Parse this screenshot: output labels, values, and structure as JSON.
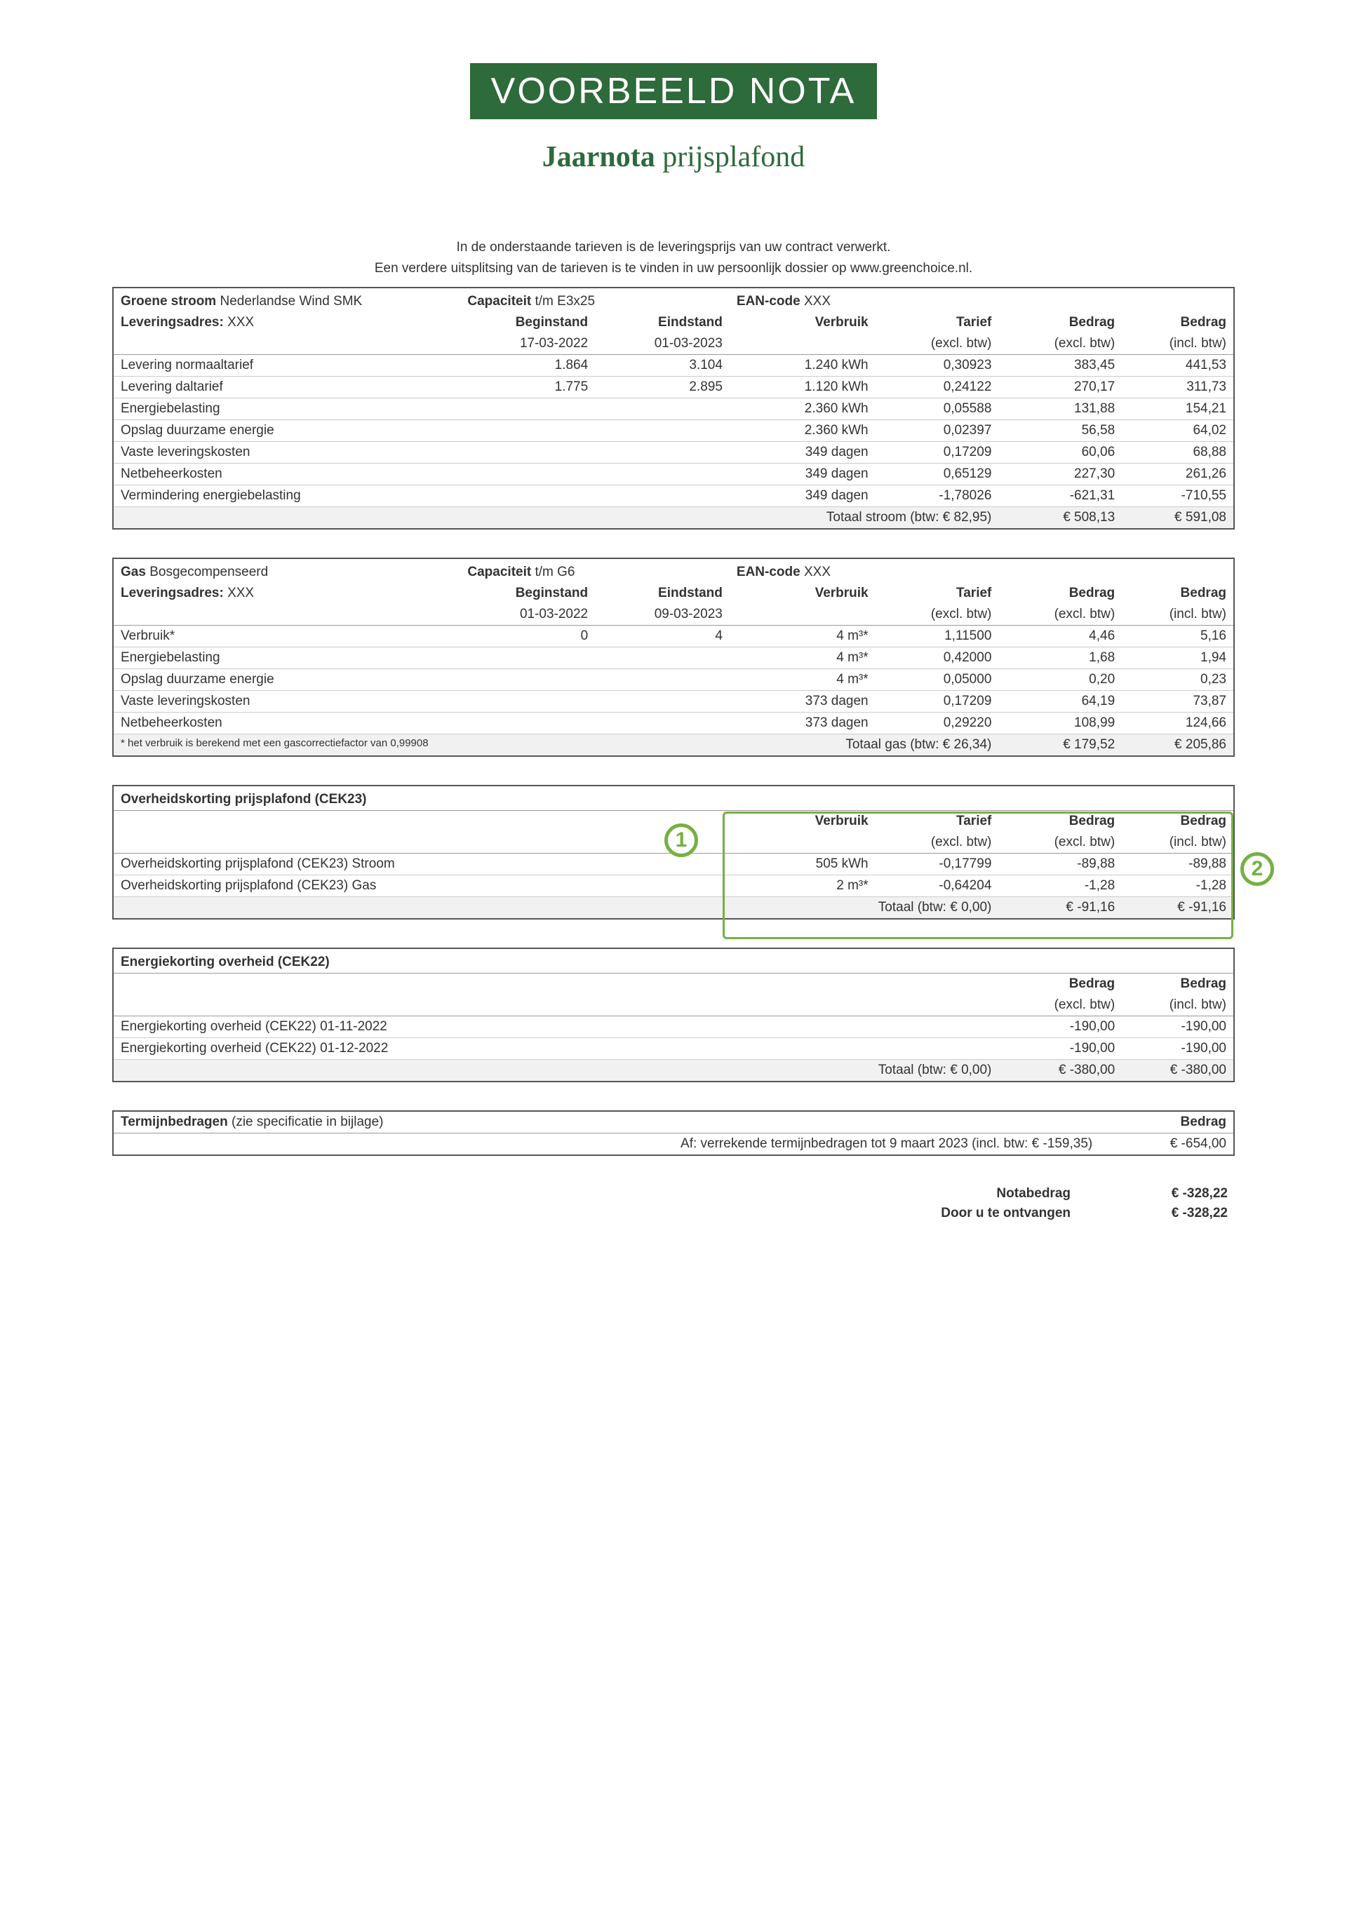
{
  "banner": "VOORBEELD NOTA",
  "subtitle_bold": "Jaarnota",
  "subtitle_light": " prijsplafond",
  "intro_line1": "In de onderstaande tarieven is de leveringsprijs van uw contract verwerkt.",
  "intro_line2": "Een verdere uitsplitsing van de tarieven is te vinden in uw persoonlijk dossier op www.greenchoice.nl.",
  "stroom": {
    "product_label": "Groene stroom",
    "product_value": "Nederlandse Wind SMK",
    "capaciteit_label": "Capaciteit",
    "capaciteit_value": "t/m E3x25",
    "ean_label": "EAN-code",
    "ean_value": "XXX",
    "adres_label": "Leveringsadres:",
    "adres_value": "XXX",
    "col_beginstand": "Beginstand",
    "col_beginstand_date": "17-03-2022",
    "col_eindstand": "Eindstand",
    "col_eindstand_date": "01-03-2023",
    "col_verbruik": "Verbruik",
    "col_tarief": "Tarief",
    "col_tarief_sub": "(excl. btw)",
    "col_bedrag_excl": "Bedrag",
    "col_bedrag_excl_sub": "(excl. btw)",
    "col_bedrag_incl": "Bedrag",
    "col_bedrag_incl_sub": "(incl. btw)",
    "rows": [
      {
        "label": "Levering normaaltarief",
        "begin": "1.864",
        "eind": "3.104",
        "verbruik": "1.240 kWh",
        "tarief": "0,30923",
        "excl": "383,45",
        "incl": "441,53"
      },
      {
        "label": "Levering daltarief",
        "begin": "1.775",
        "eind": "2.895",
        "verbruik": "1.120 kWh",
        "tarief": "0,24122",
        "excl": "270,17",
        "incl": "311,73"
      },
      {
        "label": "Energiebelasting",
        "begin": "",
        "eind": "",
        "verbruik": "2.360 kWh",
        "tarief": "0,05588",
        "excl": "131,88",
        "incl": "154,21"
      },
      {
        "label": "Opslag duurzame energie",
        "begin": "",
        "eind": "",
        "verbruik": "2.360 kWh",
        "tarief": "0,02397",
        "excl": "56,58",
        "incl": "64,02"
      },
      {
        "label": "Vaste leveringskosten",
        "begin": "",
        "eind": "",
        "verbruik": "349 dagen",
        "tarief": "0,17209",
        "excl": "60,06",
        "incl": "68,88"
      },
      {
        "label": "Netbeheerkosten",
        "begin": "",
        "eind": "",
        "verbruik": "349 dagen",
        "tarief": "0,65129",
        "excl": "227,30",
        "incl": "261,26"
      },
      {
        "label": "Vermindering energiebelasting",
        "begin": "",
        "eind": "",
        "verbruik": "349 dagen",
        "tarief": "-1,78026",
        "excl": "-621,31",
        "incl": "-710,55"
      }
    ],
    "total_label": "Totaal stroom (btw: € 82,95)",
    "total_excl": "€ 508,13",
    "total_incl": "€ 591,08"
  },
  "gas": {
    "product_label": "Gas",
    "product_value": "Bosgecompenseerd",
    "capaciteit_label": "Capaciteit",
    "capaciteit_value": "t/m G6",
    "ean_label": "EAN-code",
    "ean_value": "XXX",
    "adres_label": "Leveringsadres:",
    "adres_value": "XXX",
    "col_beginstand": "Beginstand",
    "col_beginstand_date": "01-03-2022",
    "col_eindstand": "Eindstand",
    "col_eindstand_date": "09-03-2023",
    "col_verbruik": "Verbruik",
    "col_tarief": "Tarief",
    "col_tarief_sub": "(excl. btw)",
    "col_bedrag_excl": "Bedrag",
    "col_bedrag_excl_sub": "(excl. btw)",
    "col_bedrag_incl": "Bedrag",
    "col_bedrag_incl_sub": "(incl. btw)",
    "rows": [
      {
        "label": "Verbruik*",
        "begin": "0",
        "eind": "4",
        "verbruik": "4 m³*",
        "tarief": "1,11500",
        "excl": "4,46",
        "incl": "5,16"
      },
      {
        "label": "Energiebelasting",
        "begin": "",
        "eind": "",
        "verbruik": "4 m³*",
        "tarief": "0,42000",
        "excl": "1,68",
        "incl": "1,94"
      },
      {
        "label": "Opslag duurzame energie",
        "begin": "",
        "eind": "",
        "verbruik": "4 m³*",
        "tarief": "0,05000",
        "excl": "0,20",
        "incl": "0,23"
      },
      {
        "label": "Vaste leveringskosten",
        "begin": "",
        "eind": "",
        "verbruik": "373 dagen",
        "tarief": "0,17209",
        "excl": "64,19",
        "incl": "73,87"
      },
      {
        "label": "Netbeheerkosten",
        "begin": "",
        "eind": "",
        "verbruik": "373 dagen",
        "tarief": "0,29220",
        "excl": "108,99",
        "incl": "124,66"
      }
    ],
    "footnote": "* het verbruik is berekend met een gascorrectiefactor van 0,99908",
    "total_label": "Totaal gas (btw: € 26,34)",
    "total_excl": "€ 179,52",
    "total_incl": "€ 205,86"
  },
  "cek23": {
    "title": "Overheidskorting prijsplafond (CEK23)",
    "col_verbruik": "Verbruik",
    "col_tarief": "Tarief",
    "col_tarief_sub": "(excl. btw)",
    "col_bedrag_excl": "Bedrag",
    "col_bedrag_excl_sub": "(excl. btw)",
    "col_bedrag_incl": "Bedrag",
    "col_bedrag_incl_sub": "(incl. btw)",
    "rows": [
      {
        "label": "Overheidskorting prijsplafond (CEK23) Stroom",
        "verbruik": "505 kWh",
        "tarief": "-0,17799",
        "excl": "-89,88",
        "incl": "-89,88"
      },
      {
        "label": "Overheidskorting prijsplafond (CEK23) Gas",
        "verbruik": "2 m³*",
        "tarief": "-0,64204",
        "excl": "-1,28",
        "incl": "-1,28"
      }
    ],
    "total_label": "Totaal (btw: € 0,00)",
    "total_excl": "€ -91,16",
    "total_incl": "€ -91,16",
    "badge1": "1",
    "badge2": "2"
  },
  "cek22": {
    "title": "Energiekorting overheid (CEK22)",
    "col_bedrag_excl": "Bedrag",
    "col_bedrag_excl_sub": "(excl. btw)",
    "col_bedrag_incl": "Bedrag",
    "col_bedrag_incl_sub": "(incl. btw)",
    "rows": [
      {
        "label": "Energiekorting overheid (CEK22) 01-11-2022",
        "excl": "-190,00",
        "incl": "-190,00"
      },
      {
        "label": "Energiekorting overheid (CEK22) 01-12-2022",
        "excl": "-190,00",
        "incl": "-190,00"
      }
    ],
    "total_label": "Totaal (btw: € 0,00)",
    "total_excl": "€ -380,00",
    "total_incl": "€ -380,00"
  },
  "termijn": {
    "title_bold": "Termijnbedragen",
    "title_light": " (zie specificatie in bijlage)",
    "col_bedrag": "Bedrag",
    "row_label": "Af: verrekende termijnbedragen tot 9 maart 2023 (incl. btw: € -159,35)",
    "row_value": "€  -654,00"
  },
  "summary": {
    "notabedrag_label": "Notabedrag",
    "notabedrag_value": "€ -328,22",
    "ontvangen_label": "Door u te ontvangen",
    "ontvangen_value": "€ -328,22"
  },
  "colors": {
    "accent_green": "#2d6b3a",
    "badge_green": "#76b043"
  }
}
